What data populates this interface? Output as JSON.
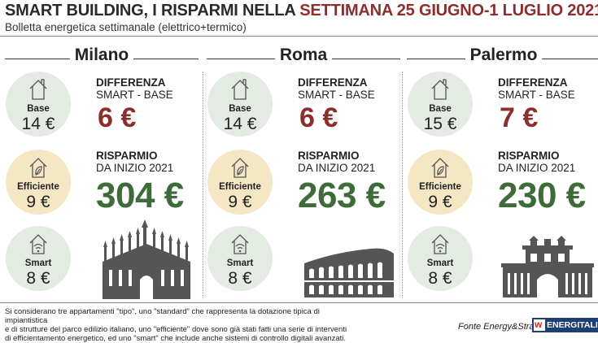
{
  "header": {
    "title_part1": "SMART BUILDING, I RISPARMI NELLA",
    "title_part2": "SETTIMANA 25 GIUGNO-1 LUGLIO 2021",
    "subtitle": "Bolletta energetica settimanale (elettrico+termico)"
  },
  "colors": {
    "accent_red": "#8b2e2e",
    "accent_green": "#3f6a3a",
    "circle_green": "#e3ebe3",
    "circle_yellow": "#f5e7c4",
    "brand_blue": "#1f3e73"
  },
  "labels": {
    "base": "Base",
    "efficient": "Efficiente",
    "smart": "Smart",
    "diff_line1": "DIFFERENZA",
    "diff_line2": "SMART - BASE",
    "save_line1": "RISPARMIO",
    "save_line2": "DA INIZIO 2021"
  },
  "cities": [
    {
      "name": "Milano",
      "base": "14 €",
      "efficient": "9 €",
      "smart": "8 €",
      "difference": "6 €",
      "savings": "304 €",
      "landmark_icon": "duomo-milano-icon"
    },
    {
      "name": "Roma",
      "base": "14 €",
      "efficient": "9 €",
      "smart": "8 €",
      "difference": "6 €",
      "savings": "263 €",
      "landmark_icon": "colosseo-icon"
    },
    {
      "name": "Palermo",
      "base": "15 €",
      "efficient": "9 €",
      "smart": "8 €",
      "difference": "7 €",
      "savings": "230 €",
      "landmark_icon": "teatro-politeama-icon"
    }
  ],
  "footer": {
    "note_line1": "Si considerano tre appartamenti \"tipo\", uno \"standard\" che rappresenta la dotazione tipica di impiantistica",
    "note_line2": "e di strutture del parco edilizio italiano, uno \"efficiente\" dove sono già stati fatti una serie di interventi",
    "note_line3": "di efficientamento energetico, ed uno \"smart\" che include anche sistemi di controllo digitali avanzati.",
    "source": "Fonte Energy&Strategy",
    "brand": "ENERGITALIA",
    "brand_logo_text": "w"
  }
}
